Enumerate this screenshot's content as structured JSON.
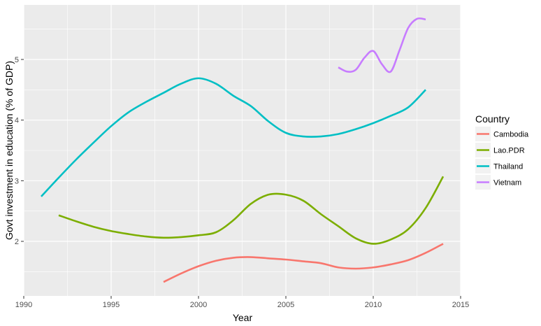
{
  "chart_data": {
    "type": "line",
    "xlabel": "Year",
    "ylabel": "Govt investment in education (% of GDP)",
    "xlim": [
      1990,
      2015
    ],
    "ylim": [
      1.1,
      5.9
    ],
    "x_ticks": [
      1990,
      1995,
      2000,
      2005,
      2010,
      2015
    ],
    "y_ticks": [
      2,
      3,
      4,
      5
    ],
    "grid": true,
    "panel_background": "#EBEBEB",
    "legend": {
      "title": "Country",
      "position": "right"
    },
    "series": [
      {
        "name": "Cambodia",
        "color": "#F8766D",
        "points": [
          [
            1998,
            1.33
          ],
          [
            1999,
            1.47
          ],
          [
            2000,
            1.59
          ],
          [
            2001,
            1.68
          ],
          [
            2002,
            1.73
          ],
          [
            2003,
            1.74
          ],
          [
            2004,
            1.72
          ],
          [
            2005,
            1.7
          ],
          [
            2006,
            1.67
          ],
          [
            2007,
            1.64
          ],
          [
            2008,
            1.57
          ],
          [
            2009,
            1.55
          ],
          [
            2010,
            1.57
          ],
          [
            2011,
            1.62
          ],
          [
            2012,
            1.69
          ],
          [
            2013,
            1.81
          ],
          [
            2014,
            1.96
          ]
        ]
      },
      {
        "name": "Lao.PDR",
        "color": "#7CAE00",
        "points": [
          [
            1992,
            2.43
          ],
          [
            1993,
            2.33
          ],
          [
            1994,
            2.24
          ],
          [
            1995,
            2.17
          ],
          [
            1996,
            2.12
          ],
          [
            1997,
            2.08
          ],
          [
            1998,
            2.06
          ],
          [
            1999,
            2.07
          ],
          [
            2000,
            2.1
          ],
          [
            2001,
            2.15
          ],
          [
            2002,
            2.35
          ],
          [
            2003,
            2.62
          ],
          [
            2004,
            2.77
          ],
          [
            2005,
            2.77
          ],
          [
            2006,
            2.67
          ],
          [
            2007,
            2.45
          ],
          [
            2008,
            2.25
          ],
          [
            2009,
            2.05
          ],
          [
            2010,
            1.96
          ],
          [
            2011,
            2.03
          ],
          [
            2012,
            2.2
          ],
          [
            2013,
            2.55
          ],
          [
            2014,
            3.07
          ]
        ]
      },
      {
        "name": "Thailand",
        "color": "#00BFC4",
        "points": [
          [
            1991,
            2.74
          ],
          [
            1992,
            3.05
          ],
          [
            1993,
            3.35
          ],
          [
            1994,
            3.63
          ],
          [
            1995,
            3.9
          ],
          [
            1996,
            4.13
          ],
          [
            1997,
            4.3
          ],
          [
            1998,
            4.45
          ],
          [
            1999,
            4.6
          ],
          [
            2000,
            4.69
          ],
          [
            2001,
            4.6
          ],
          [
            2002,
            4.4
          ],
          [
            2003,
            4.23
          ],
          [
            2004,
            3.98
          ],
          [
            2005,
            3.79
          ],
          [
            2006,
            3.73
          ],
          [
            2007,
            3.73
          ],
          [
            2008,
            3.77
          ],
          [
            2009,
            3.85
          ],
          [
            2010,
            3.95
          ],
          [
            2011,
            4.07
          ],
          [
            2012,
            4.21
          ],
          [
            2013,
            4.5
          ]
        ]
      },
      {
        "name": "Vietnam",
        "color": "#C77CFF",
        "points": [
          [
            2008,
            4.87
          ],
          [
            2008.5,
            4.8
          ],
          [
            2009,
            4.83
          ],
          [
            2009.5,
            5.03
          ],
          [
            2010,
            5.14
          ],
          [
            2010.5,
            4.92
          ],
          [
            2011,
            4.8
          ],
          [
            2011.5,
            5.15
          ],
          [
            2012,
            5.52
          ],
          [
            2012.5,
            5.67
          ],
          [
            2013,
            5.66
          ]
        ]
      }
    ]
  }
}
